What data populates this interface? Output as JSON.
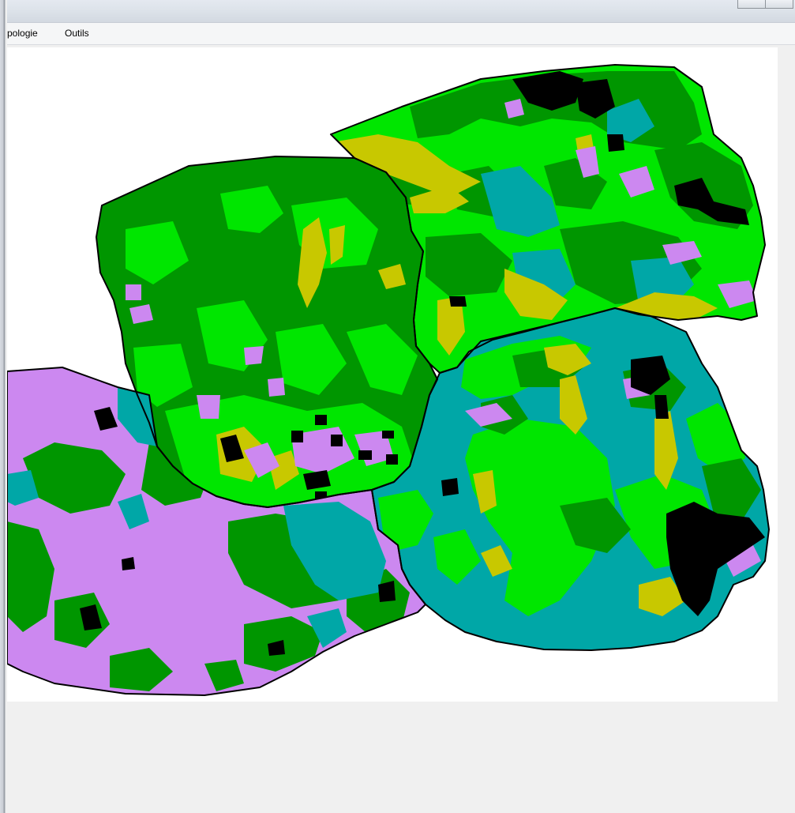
{
  "window": {
    "menu": [
      {
        "label": "pologie"
      },
      {
        "label": "Outils"
      }
    ]
  },
  "map": {
    "legend_colors": {
      "dark_green": "#009600",
      "bright_green": "#00e600",
      "teal": "#00a7a7",
      "violet": "#cc88f0",
      "olive": "#c8c800",
      "black": "#000000"
    }
  }
}
